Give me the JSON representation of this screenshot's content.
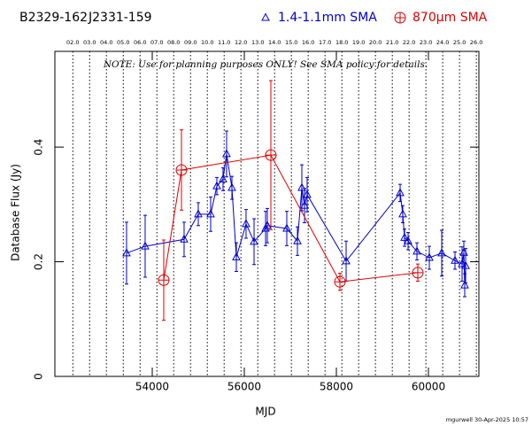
{
  "chart_data": {
    "type": "line",
    "source": "B2329-162",
    "alias": "J2331-159",
    "note": "NOTE: Use for planning purposes ONLY!  See SMA policy for details.",
    "footer": "mgurwell 30-Apr-2025 10:57",
    "xlabel": "MJD",
    "ylabel": "Database Flux (Jy)",
    "xlim": [
      51885,
      61096
    ],
    "ylim": [
      0,
      0.567
    ],
    "xticks": [
      54000,
      56000,
      58000,
      60000
    ],
    "yticks": [
      0,
      0.2,
      0.4
    ],
    "x2ticks": [
      {
        "value": 52275,
        "label": "02.0"
      },
      {
        "value": 52640,
        "label": "03.0"
      },
      {
        "value": 53005,
        "label": "04.0"
      },
      {
        "value": 53371,
        "label": "05.0"
      },
      {
        "value": 53736,
        "label": "06.0"
      },
      {
        "value": 54101,
        "label": "07.0"
      },
      {
        "value": 54466,
        "label": "08.0"
      },
      {
        "value": 54832,
        "label": "09.0"
      },
      {
        "value": 55197,
        "label": "10.0"
      },
      {
        "value": 55562,
        "label": "11.0"
      },
      {
        "value": 55927,
        "label": "12.0"
      },
      {
        "value": 56293,
        "label": "13.0"
      },
      {
        "value": 56658,
        "label": "14.0"
      },
      {
        "value": 57023,
        "label": "15.0"
      },
      {
        "value": 57388,
        "label": "16.0"
      },
      {
        "value": 57754,
        "label": "17.0"
      },
      {
        "value": 58119,
        "label": "18.0"
      },
      {
        "value": 58484,
        "label": "19.0"
      },
      {
        "value": 58849,
        "label": "20.0"
      },
      {
        "value": 59215,
        "label": "21.0"
      },
      {
        "value": 59580,
        "label": "22.0"
      },
      {
        "value": 59945,
        "label": "23.0"
      },
      {
        "value": 60310,
        "label": "24.0"
      },
      {
        "value": 60676,
        "label": "25.0"
      },
      {
        "value": 61041,
        "label": "26.0"
      }
    ],
    "series": [
      {
        "name": "1.4-1.1mm SMA",
        "color": "#0000cc",
        "marker": "triangle",
        "x": [
          53442,
          53846,
          54692,
          55000,
          55269,
          55404,
          55538,
          55615,
          55731,
          55827,
          56038,
          56212,
          56462,
          56500,
          56923,
          57154,
          57250,
          57308,
          57365,
          58212,
          59385,
          59442,
          59481,
          59558,
          59750,
          60019,
          60288,
          60577,
          60731,
          60769,
          60788,
          60808
        ],
        "values": [
          0.215,
          0.227,
          0.239,
          0.283,
          0.283,
          0.332,
          0.344,
          0.388,
          0.329,
          0.208,
          0.266,
          0.235,
          0.258,
          0.263,
          0.258,
          0.236,
          0.329,
          0.298,
          0.317,
          0.201,
          0.32,
          0.283,
          0.242,
          0.236,
          0.218,
          0.207,
          0.215,
          0.202,
          0.196,
          0.216,
          0.159,
          0.193
        ],
        "errors": [
          0.054,
          0.054,
          0.03,
          0.02,
          0.03,
          0.015,
          0.02,
          0.04,
          0.02,
          0.025,
          0.025,
          0.04,
          0.03,
          0.03,
          0.03,
          0.025,
          0.04,
          0.03,
          0.03,
          0.035,
          0.015,
          0.015,
          0.015,
          0.015,
          0.015,
          0.02,
          0.04,
          0.015,
          0.03,
          0.02,
          0.02,
          0.03
        ]
      },
      {
        "name": "870μm SMA",
        "color": "#dd0000",
        "marker": "circle-plus",
        "x": [
          54250,
          54635,
          56577,
          58077,
          59769
        ],
        "values": [
          0.168,
          0.36,
          0.386,
          0.165,
          0.181
        ],
        "errors": [
          0.07,
          0.07,
          0.13,
          0.015,
          0.015
        ]
      }
    ]
  }
}
